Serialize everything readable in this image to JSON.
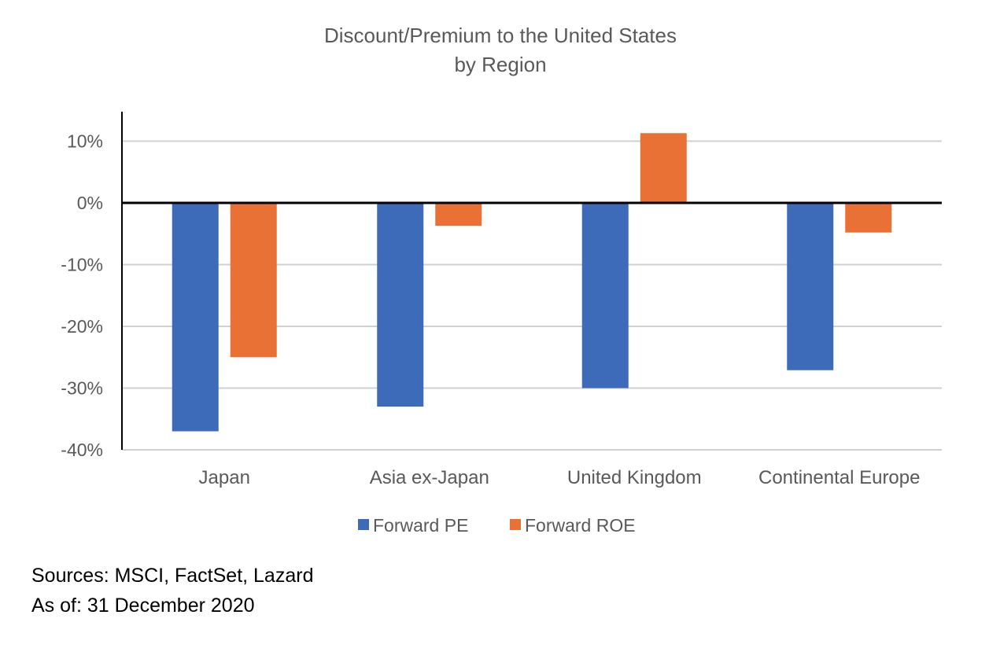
{
  "chart_data": {
    "type": "bar",
    "title": [
      "Discount/Premium to the United States",
      "by Region"
    ],
    "xlabel": "",
    "ylabel": "",
    "categories": [
      "Japan",
      "Asia ex-Japan",
      "United Kingdom",
      "Continental Europe"
    ],
    "series": [
      {
        "name": "Forward PE",
        "color": "#3D6BBA",
        "values": [
          -37,
          -33,
          -30,
          -27.1
        ]
      },
      {
        "name": "Forward ROE",
        "color": "#E97135",
        "values": [
          -25,
          -3.7,
          11.3,
          -4.8
        ]
      }
    ],
    "ylim": [
      -40,
      10
    ],
    "yticks": [
      10,
      0,
      -10,
      -20,
      -30,
      -40
    ],
    "ytick_labels": [
      "10%",
      "0%",
      "-10%",
      "-20%",
      "-30%",
      "-40%"
    ],
    "grid": true,
    "legend_position": "bottom"
  },
  "footer": {
    "sources": "Sources:  MSCI, FactSet, Lazard",
    "as_of": "As of: 31 December 2020"
  }
}
